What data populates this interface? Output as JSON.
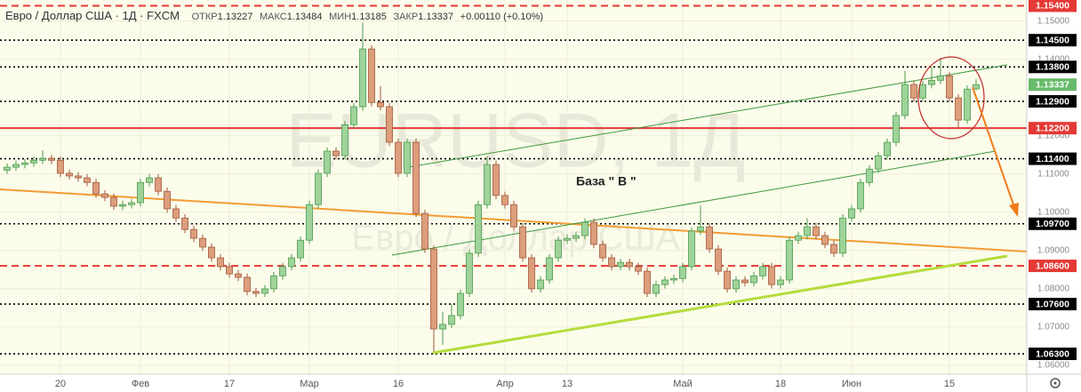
{
  "chart_data": {
    "type": "candlestick",
    "title": "Евро / Доллар США · 1Д · FXCM",
    "header_labels": [
      "ОТКР",
      "МАКС",
      "МИН",
      "ЗАКР"
    ],
    "change": "+0.00110 (+0.10%)",
    "watermark": [
      "EURUSD, 1Д",
      "Евро / Доллар США"
    ],
    "annotation": "База \" В \"",
    "up_color": "#9ed39a",
    "up_edge": "#4c9b4c",
    "down_color": "#dc9e7c",
    "down_edge": "#a05a3a",
    "grid": true,
    "ylim": [
      1.0579,
      1.1555
    ],
    "yticks": [
      {
        "value": 1.15,
        "label": "1.15000"
      },
      {
        "value": 1.14,
        "label": "1.14000"
      },
      {
        "value": 1.12,
        "label": "1.12000"
      },
      {
        "value": 1.11,
        "label": "1.11000"
      },
      {
        "value": 1.1,
        "label": "1.10000"
      },
      {
        "value": 1.09,
        "label": "1.09000"
      },
      {
        "value": 1.08,
        "label": "1.08000"
      },
      {
        "value": 1.07,
        "label": "1.07000"
      },
      {
        "value": 1.06,
        "label": "1.06000"
      }
    ],
    "levels": [
      {
        "value": 1.154,
        "label": "1.15400",
        "color": "#e53935",
        "style": "dashed"
      },
      {
        "value": 1.145,
        "label": "1.14500",
        "color": "#000000",
        "style": "dotted"
      },
      {
        "value": 1.138,
        "label": "1.13800",
        "color": "#000000",
        "style": "dotted"
      },
      {
        "value": 1.129,
        "label": "1.12900",
        "color": "#000000",
        "style": "dotted"
      },
      {
        "value": 1.122,
        "label": "1.12200",
        "color": "#e53935",
        "style": "solid"
      },
      {
        "value": 1.114,
        "label": "1.11400",
        "color": "#000000",
        "style": "dotted"
      },
      {
        "value": 1.097,
        "label": "1.09700",
        "color": "#000000",
        "style": "dotted"
      },
      {
        "value": 1.086,
        "label": "1.08600",
        "color": "#e53935",
        "style": "dashed"
      },
      {
        "value": 1.076,
        "label": "1.07600",
        "color": "#000000",
        "style": "dotted"
      },
      {
        "value": 1.063,
        "label": "1.06300",
        "color": "#000000",
        "style": "dotted"
      }
    ],
    "last_color": "#66bb6a",
    "categories": [
      null,
      null,
      null,
      null,
      null,
      null,
      "20",
      null,
      null,
      null,
      null,
      null,
      null,
      null,
      null,
      "Фев",
      null,
      null,
      null,
      null,
      null,
      null,
      null,
      null,
      null,
      "17",
      null,
      null,
      null,
      null,
      null,
      null,
      null,
      null,
      "Мар",
      null,
      null,
      null,
      null,
      null,
      null,
      null,
      null,
      null,
      "16",
      null,
      null,
      null,
      null,
      null,
      null,
      null,
      null,
      null,
      null,
      null,
      "Апр",
      null,
      null,
      null,
      null,
      null,
      null,
      "13",
      null,
      null,
      null,
      null,
      null,
      null,
      null,
      null,
      null,
      null,
      null,
      null,
      "Май",
      null,
      null,
      null,
      null,
      null,
      null,
      null,
      null,
      null,
      null,
      "18",
      null,
      null,
      null,
      null,
      null,
      null,
      null,
      "Июн",
      null,
      null,
      null,
      null,
      null,
      null,
      null,
      null,
      null,
      null,
      "15",
      null,
      null,
      null
    ],
    "open": [
      1.111,
      1.1118,
      1.1125,
      1.1129,
      1.1136,
      1.1141,
      1.1136,
      1.1102,
      1.1095,
      1.109,
      1.1078,
      1.1048,
      1.1039,
      1.1016,
      1.102,
      1.1025,
      1.1078,
      1.109,
      1.1055,
      1.1009,
      1.0985,
      1.0955,
      1.0932,
      1.0909,
      1.0881,
      1.0858,
      1.0839,
      1.083,
      1.0793,
      1.0788,
      1.08,
      1.0834,
      1.0858,
      1.0881,
      1.0927,
      1.102,
      1.1102,
      1.116,
      1.1148,
      1.1229,
      1.1276,
      1.1427,
      1.1287,
      1.1276,
      1.1183,
      1.1102,
      1.1183,
      1.0997,
      1.0904,
      1.0695,
      1.0707,
      1.073,
      1.0788,
      1.0893,
      1.102,
      1.1125,
      1.1044,
      1.102,
      1.0962,
      1.0881,
      1.08,
      1.0823,
      1.0881,
      1.0927,
      1.0932,
      1.0939,
      1.0974,
      1.0916,
      1.0881,
      1.0858,
      1.0869,
      1.0858,
      1.0846,
      1.0788,
      1.0811,
      1.0823,
      1.0827,
      1.0858,
      1.0951,
      1.0962,
      1.0904,
      1.0846,
      1.08,
      1.0823,
      1.0816,
      1.0834,
      1.0858,
      1.0811,
      1.0823,
      1.0927,
      1.0939,
      1.0962,
      1.0939,
      1.0916,
      1.0893,
      1.0985,
      1.1009,
      1.1078,
      1.1113,
      1.1148,
      1.1183,
      1.1253,
      1.1334,
      1.1299,
      1.1334,
      1.1345,
      1.1357,
      1.1299,
      1.1241,
      1.13227
    ],
    "high": [
      1.1128,
      1.1135,
      1.1139,
      1.1146,
      1.1162,
      1.1151,
      1.1146,
      1.1112,
      1.1105,
      1.11,
      1.1088,
      1.1058,
      1.1049,
      1.103,
      1.1035,
      1.1088,
      1.11,
      1.11,
      1.1065,
      1.1019,
      1.0995,
      1.0965,
      1.0942,
      1.0919,
      1.0891,
      1.0868,
      1.0849,
      1.084,
      1.0803,
      1.081,
      1.0844,
      1.0868,
      1.0891,
      1.0937,
      1.103,
      1.1112,
      1.117,
      1.117,
      1.1239,
      1.1286,
      1.1496,
      1.1437,
      1.133,
      1.1286,
      1.1193,
      1.1193,
      1.1193,
      1.1007,
      1.0914,
      1.074,
      1.076,
      1.0798,
      1.0903,
      1.103,
      1.1147,
      1.1135,
      1.1054,
      1.103,
      1.0972,
      1.0891,
      1.0833,
      1.0891,
      1.0937,
      1.0942,
      1.0949,
      1.0984,
      1.0984,
      1.0926,
      1.0891,
      1.0879,
      1.0879,
      1.0868,
      1.0856,
      1.0821,
      1.0833,
      1.0837,
      1.0868,
      1.0961,
      1.1018,
      1.0972,
      1.0914,
      1.0856,
      1.0833,
      1.0833,
      1.0844,
      1.0868,
      1.0868,
      1.0833,
      1.0937,
      1.0949,
      1.0985,
      1.0972,
      1.0949,
      1.0926,
      1.0995,
      1.1019,
      1.1088,
      1.1123,
      1.1158,
      1.1193,
      1.1263,
      1.137,
      1.1344,
      1.1344,
      1.138,
      1.1405,
      1.1367,
      1.1309,
      1.1332,
      1.13484
    ],
    "low": [
      1.11,
      1.1108,
      1.1115,
      1.1119,
      1.1126,
      1.1126,
      1.1092,
      1.1085,
      1.108,
      1.1068,
      1.1038,
      1.1029,
      1.1006,
      1.1006,
      1.101,
      1.1015,
      1.1068,
      1.1045,
      1.0999,
      1.0975,
      1.0945,
      1.0922,
      1.0899,
      1.0871,
      1.0848,
      1.0829,
      1.082,
      1.0783,
      1.0778,
      1.0778,
      1.079,
      1.0824,
      1.0848,
      1.0871,
      1.0917,
      1.101,
      1.1092,
      1.1138,
      1.1138,
      1.1219,
      1.1266,
      1.1277,
      1.1266,
      1.1173,
      1.1092,
      1.1092,
      1.0987,
      1.0894,
      1.0636,
      1.0654,
      1.0697,
      1.072,
      1.0778,
      1.0883,
      1.101,
      1.1034,
      1.101,
      1.0952,
      1.0871,
      1.079,
      1.079,
      1.0813,
      1.0871,
      1.0917,
      1.0922,
      1.0929,
      1.0906,
      1.0871,
      1.0848,
      1.0848,
      1.0848,
      1.0836,
      1.0778,
      1.0778,
      1.0801,
      1.0813,
      1.0817,
      1.0848,
      1.0941,
      1.0894,
      1.0836,
      1.079,
      1.079,
      1.0806,
      1.0806,
      1.0824,
      1.0801,
      1.0801,
      1.0813,
      1.0917,
      1.0929,
      1.0929,
      1.0906,
      1.0883,
      1.0883,
      1.0975,
      1.0999,
      1.1068,
      1.1103,
      1.1138,
      1.1173,
      1.1243,
      1.1289,
      1.1289,
      1.1324,
      1.1335,
      1.1289,
      1.122,
      1.1231,
      1.13185
    ],
    "close": [
      1.1118,
      1.1125,
      1.1129,
      1.1136,
      1.1141,
      1.1136,
      1.1102,
      1.1095,
      1.109,
      1.1078,
      1.1048,
      1.1039,
      1.1016,
      1.102,
      1.1025,
      1.1078,
      1.109,
      1.1055,
      1.1009,
      1.0985,
      1.0955,
      1.0932,
      1.0909,
      1.0881,
      1.0858,
      1.0839,
      1.083,
      1.0793,
      1.0788,
      1.08,
      1.0834,
      1.0858,
      1.0881,
      1.0927,
      1.102,
      1.1102,
      1.116,
      1.1148,
      1.1229,
      1.1276,
      1.1427,
      1.1287,
      1.1276,
      1.1183,
      1.1102,
      1.1183,
      1.0997,
      1.0904,
      1.0695,
      1.0707,
      1.073,
      1.0788,
      1.0893,
      1.102,
      1.1125,
      1.1044,
      1.102,
      1.0962,
      1.0881,
      1.08,
      1.0823,
      1.0881,
      1.0927,
      1.0932,
      1.0939,
      1.0974,
      1.0916,
      1.0881,
      1.0858,
      1.0869,
      1.0858,
      1.0846,
      1.0788,
      1.0811,
      1.0823,
      1.0827,
      1.0858,
      1.0951,
      1.0962,
      1.0904,
      1.0846,
      1.08,
      1.0823,
      1.0816,
      1.0834,
      1.0858,
      1.0811,
      1.0823,
      1.0927,
      1.0939,
      1.0962,
      1.0939,
      1.0916,
      1.0893,
      1.0985,
      1.1009,
      1.1078,
      1.1113,
      1.1148,
      1.1183,
      1.1253,
      1.1334,
      1.1299,
      1.1334,
      1.1345,
      1.1357,
      1.1299,
      1.1241,
      1.1322,
      1.13337
    ]
  }
}
